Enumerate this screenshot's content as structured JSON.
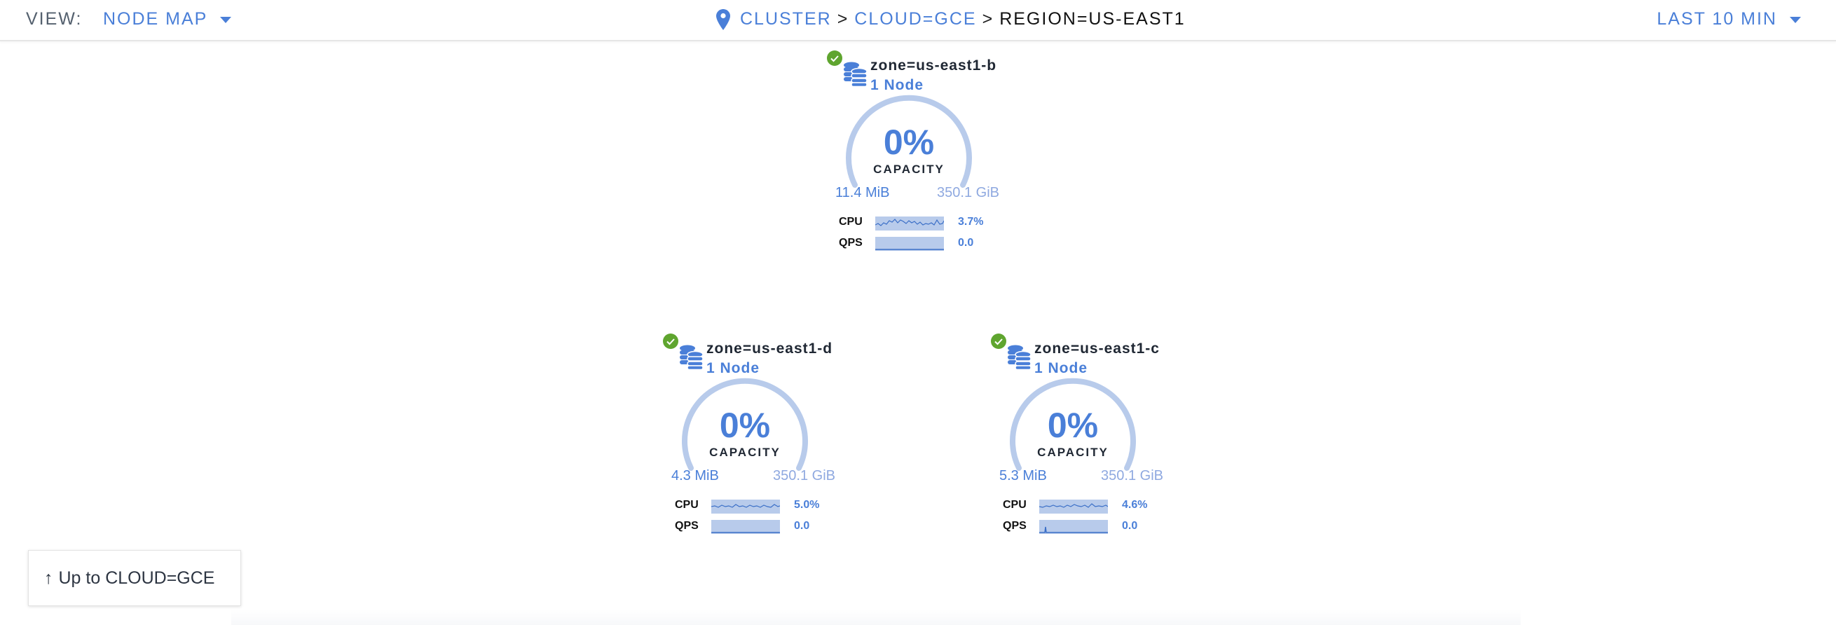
{
  "header": {
    "view_label": "VIEW:",
    "view_value": "NODE MAP",
    "breadcrumb": [
      {
        "label": "CLUSTER",
        "link": true
      },
      {
        "label": "CLOUD=GCE",
        "link": true
      },
      {
        "label": "REGION=US-EAST1",
        "link": false
      }
    ],
    "separator": ">",
    "time_range": "LAST 10 MIN"
  },
  "colors": {
    "accent": "#4a7fd8",
    "gauge": "#b8cbeb",
    "healthy": "#5fa52f"
  },
  "zones": [
    {
      "title": "zone=us-east1-b",
      "nodes": "1 Node",
      "capacity": "0%",
      "capacity_label": "CAPACITY",
      "used": "11.4 MiB",
      "total": "350.1 GiB",
      "status": "healthy",
      "cpu_label": "CPU",
      "cpu_value": "3.7%",
      "qps_label": "QPS",
      "qps_value": "0.0"
    },
    {
      "title": "zone=us-east1-d",
      "nodes": "1 Node",
      "capacity": "0%",
      "capacity_label": "CAPACITY",
      "used": "4.3 MiB",
      "total": "350.1 GiB",
      "status": "healthy",
      "cpu_label": "CPU",
      "cpu_value": "5.0%",
      "qps_label": "QPS",
      "qps_value": "0.0"
    },
    {
      "title": "zone=us-east1-c",
      "nodes": "1 Node",
      "capacity": "0%",
      "capacity_label": "CAPACITY",
      "used": "5.3 MiB",
      "total": "350.1 GiB",
      "status": "healthy",
      "cpu_label": "CPU",
      "cpu_value": "4.6%",
      "qps_label": "QPS",
      "qps_value": "0.0"
    }
  ],
  "up_button": {
    "label": "Up to CLOUD=GCE",
    "icon": "arrow-up-icon"
  }
}
